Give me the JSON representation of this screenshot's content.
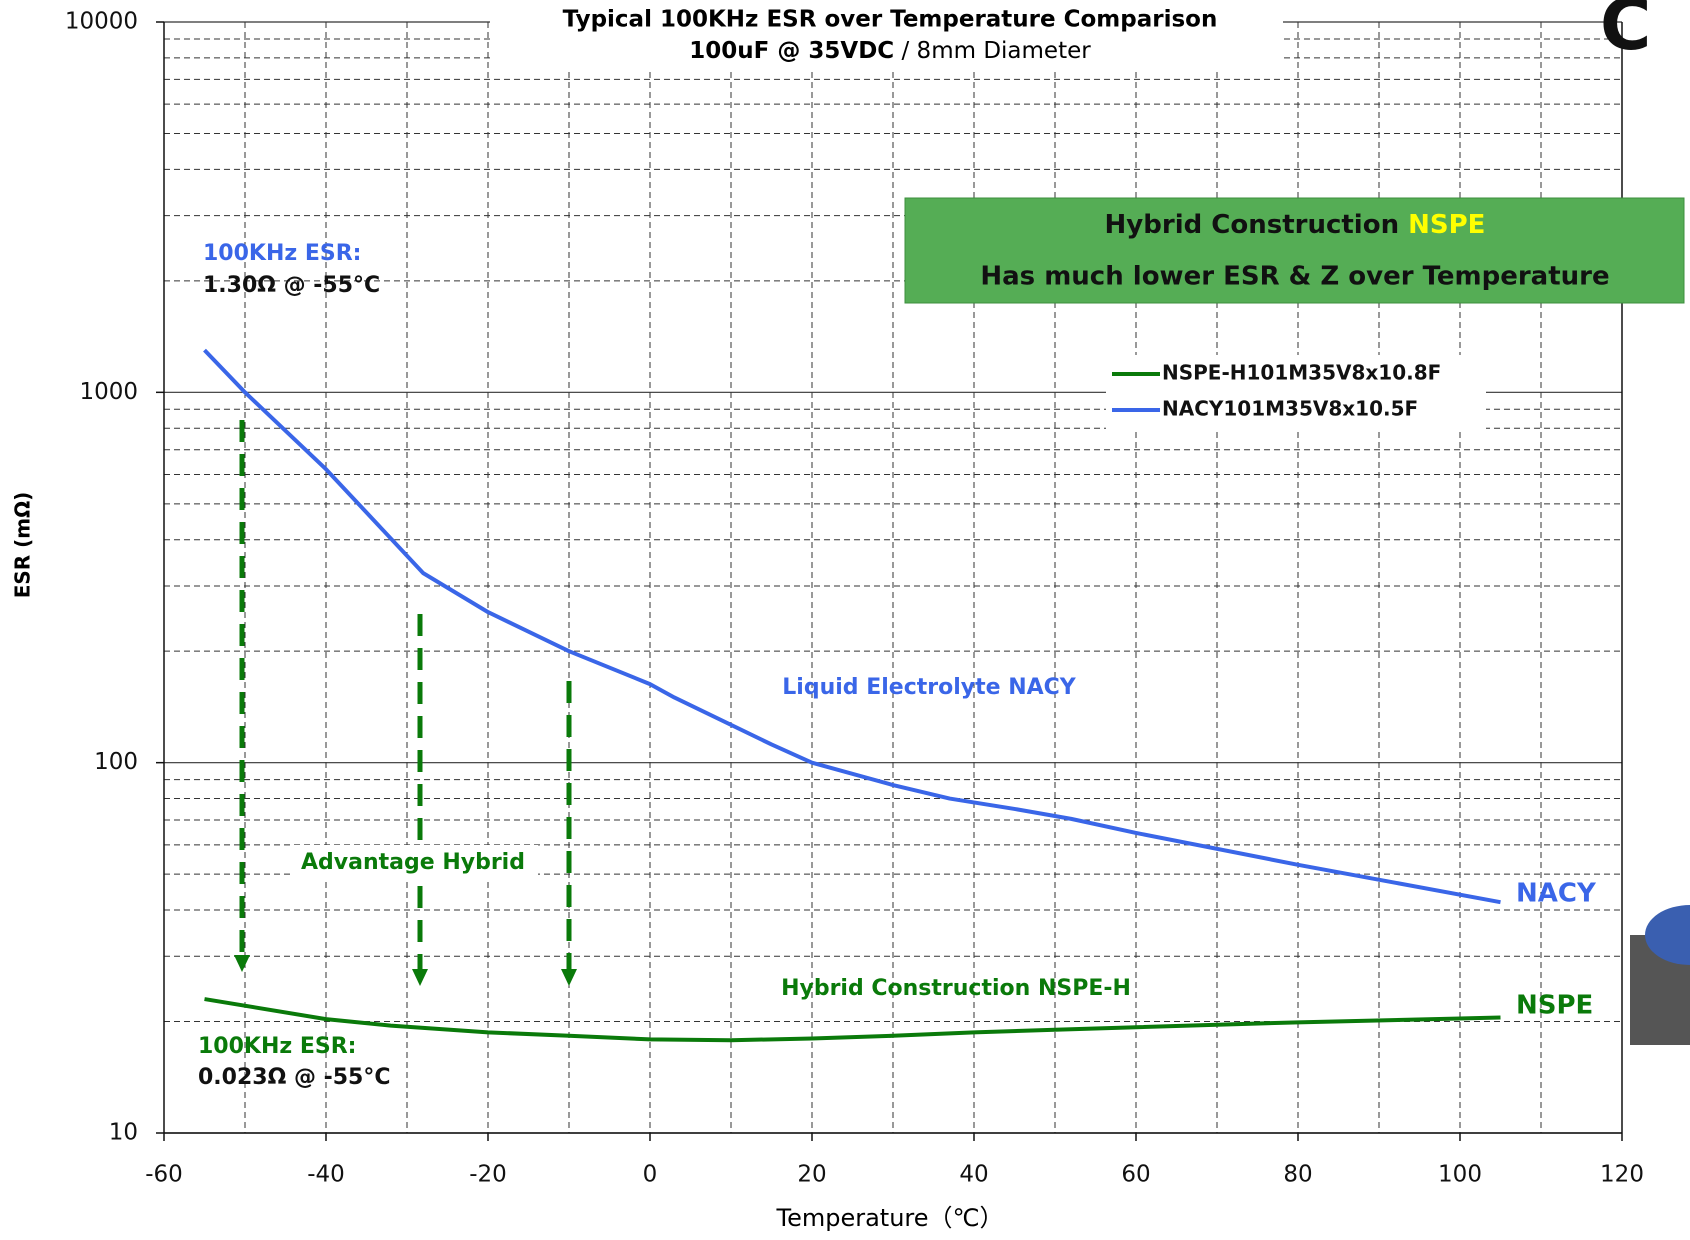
{
  "chart_data": {
    "type": "line",
    "title": "Typical 100KHz ESR over Temperature Comparison",
    "subtitle_bold": "100uF @ 35VDC",
    "subtitle": " / 8mm Diameter",
    "x_label": "Temperature（℃）",
    "y_label": "ESR (mΩ)",
    "log_y": true,
    "grid": true,
    "xlim": [
      -60,
      120
    ],
    "xticks": [
      -60,
      -40,
      -20,
      0,
      20,
      40,
      60,
      80,
      100,
      120
    ],
    "ylim": [
      10,
      10000
    ],
    "yticks": [
      10,
      100,
      1000,
      10000
    ],
    "series": [
      {
        "name": "NSPE-H101M35V8x10.8F",
        "color": "#0a7a0a",
        "x": [
          -55,
          -40,
          -32,
          -20,
          -10,
          0,
          10,
          20,
          30,
          40,
          50,
          60,
          80,
          105
        ],
        "values": [
          23,
          20.3,
          19.5,
          18.7,
          18.3,
          17.9,
          17.8,
          18,
          18.3,
          18.7,
          19,
          19.3,
          19.9,
          20.5
        ]
      },
      {
        "name": "NACY101M35V8x10.5F",
        "color": "#3a66e8",
        "x": [
          -55,
          -50,
          -40,
          -28,
          -20,
          -10,
          0,
          3,
          15,
          20,
          30,
          37,
          45,
          52,
          60,
          80,
          105
        ],
        "values": [
          1300,
          1000,
          620,
          325,
          255,
          200,
          163,
          150,
          112,
          100,
          87,
          80,
          75,
          70.5,
          64.6,
          53,
          42
        ]
      }
    ],
    "annotations": {
      "nacy_esr_title": "100KHz ESR:",
      "nacy_esr_value": "1.30Ω @ -55°C",
      "box_line1": "Hybrid Construction ",
      "box_line1_highlight": "NSPE",
      "box_line2": "Has much lower ESR & Z over Temperature",
      "liquid": "Liquid Electrolyte NACY",
      "advantage": "Advantage Hybrid",
      "hybrid": "Hybrid Construction NSPE-H",
      "nacy_end": "NACY",
      "nspe_end": "NSPE",
      "nspe_esr_title": "100KHz ESR:",
      "nspe_esr_value": "0.023Ω @ -55°C"
    }
  }
}
